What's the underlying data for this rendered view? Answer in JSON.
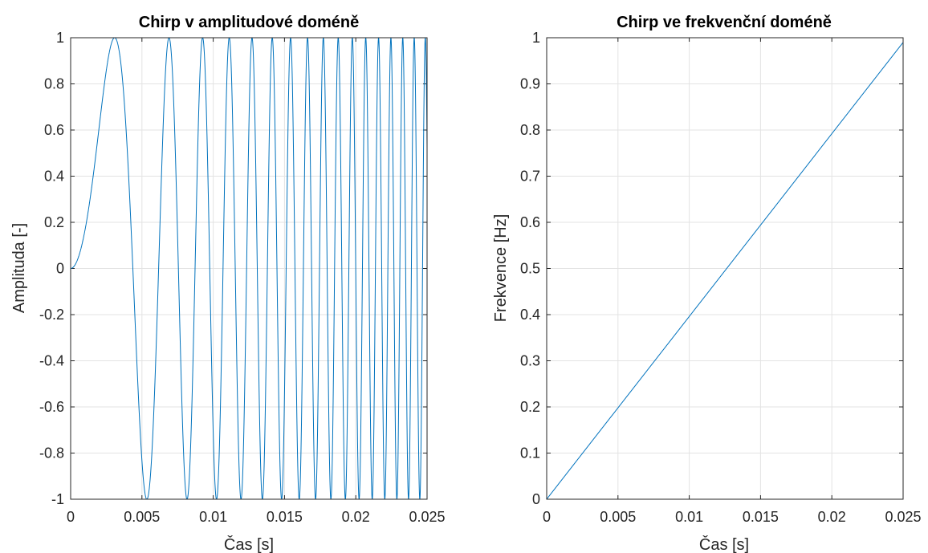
{
  "chart_data": [
    {
      "type": "line",
      "title": "Chirp v amplitudové doméně",
      "xlabel": "Čas [s]",
      "ylabel": "Amplituda [-]",
      "xlim": [
        0,
        0.025
      ],
      "ylim": [
        -1,
        1
      ],
      "grid": true,
      "x_ticks": [
        "0",
        "0.005",
        "0.01",
        "0.015",
        "0.02",
        "0.025"
      ],
      "y_ticks": [
        "1",
        "0.8",
        "0.6",
        "0.4",
        "0.2",
        "0",
        "-0.2",
        "-0.4",
        "-0.6",
        "-0.8",
        "-1"
      ],
      "color": "#0072bd",
      "series": [
        {
          "function": "sin(k*x^2)",
          "k": 165000,
          "x_range": [
            0,
            0.025
          ]
        }
      ]
    },
    {
      "type": "line",
      "title": "Chirp ve frekvenční doméně",
      "xlabel": "Čas [s]",
      "ylabel": "Frekvence [Hz]",
      "xlim": [
        0,
        0.025
      ],
      "ylim": [
        0,
        1
      ],
      "grid": true,
      "x_ticks": [
        "0",
        "0.005",
        "0.01",
        "0.015",
        "0.02",
        "0.025"
      ],
      "y_ticks": [
        "1",
        "0.9",
        "0.8",
        "0.7",
        "0.6",
        "0.5",
        "0.4",
        "0.3",
        "0.2",
        "0.1",
        "0"
      ],
      "color": "#0072bd",
      "series": [
        {
          "x": [
            0,
            0.025
          ],
          "y": [
            0,
            0.99
          ]
        }
      ]
    }
  ]
}
